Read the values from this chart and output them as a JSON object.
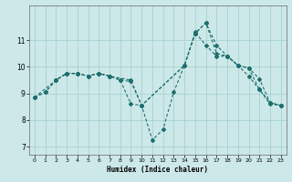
{
  "xlabel": "Humidex (Indice chaleur)",
  "bg_color": "#cde8e8",
  "grid_color": "#9ecece",
  "line_color": "#1e6e6e",
  "series": [
    {
      "x": [
        0,
        1,
        2,
        3,
        4,
        5,
        6,
        7,
        8,
        9,
        10,
        11,
        12,
        13,
        14,
        15,
        16,
        17,
        18,
        19,
        20,
        21,
        22,
        23
      ],
      "y": [
        8.85,
        9.05,
        9.5,
        9.75,
        9.75,
        9.65,
        9.75,
        9.65,
        9.5,
        8.6,
        8.55,
        7.25,
        7.65,
        9.05,
        10.05,
        11.25,
        11.65,
        10.8,
        10.4,
        10.05,
        9.65,
        9.15,
        8.6,
        8.55
      ]
    },
    {
      "x": [
        0,
        2,
        3,
        4,
        5,
        6,
        7,
        9,
        10,
        14,
        15,
        16,
        17,
        18,
        19,
        20,
        21,
        22,
        23
      ],
      "y": [
        8.85,
        9.5,
        9.75,
        9.75,
        9.65,
        9.75,
        9.65,
        9.5,
        8.55,
        10.05,
        11.3,
        10.8,
        10.4,
        10.4,
        10.05,
        9.95,
        9.55,
        8.65,
        8.55
      ]
    },
    {
      "x": [
        0,
        1,
        2,
        3,
        4,
        5,
        6,
        7,
        8,
        9,
        10,
        14,
        15,
        16,
        17,
        18,
        19,
        20,
        21,
        22,
        23
      ],
      "y": [
        8.85,
        9.05,
        9.5,
        9.75,
        9.75,
        9.65,
        9.75,
        9.65,
        9.5,
        9.45,
        8.55,
        10.05,
        11.25,
        11.65,
        10.5,
        10.4,
        10.05,
        9.95,
        9.15,
        8.65,
        8.55
      ]
    }
  ],
  "ylim": [
    6.7,
    12.3
  ],
  "yticks": [
    7,
    8,
    9,
    10,
    11
  ],
  "xlim": [
    -0.5,
    23.5
  ],
  "xticks": [
    0,
    1,
    2,
    3,
    4,
    5,
    6,
    7,
    8,
    9,
    10,
    11,
    12,
    13,
    14,
    15,
    16,
    17,
    18,
    19,
    20,
    21,
    22,
    23
  ]
}
